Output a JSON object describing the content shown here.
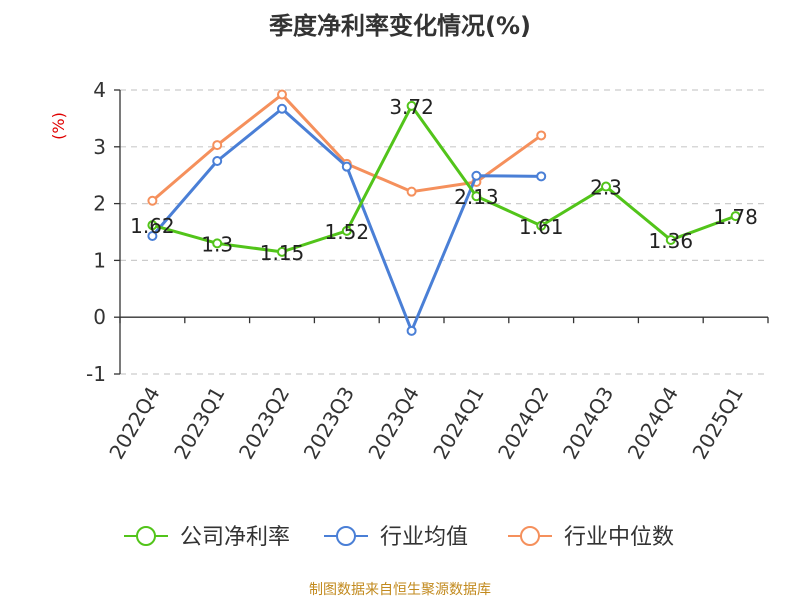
{
  "title": "季度净利率变化情况(%)",
  "unit_label": "(%)",
  "source": "制图数据来自恒生聚源数据库",
  "chart_data": {
    "type": "line",
    "title": "季度净利率变化情况(%)",
    "ylabel": "(%)",
    "xlabel": "",
    "categories": [
      "2022Q4",
      "2023Q1",
      "2023Q2",
      "2023Q3",
      "2023Q4",
      "2024Q1",
      "2024Q2",
      "2024Q3",
      "2024Q4",
      "2025Q1"
    ],
    "ylim": [
      -1,
      4
    ],
    "yticks": [
      -1,
      0,
      1,
      2,
      3,
      4
    ],
    "grid": true,
    "legend_position": "bottom",
    "series": [
      {
        "name": "公司净利率",
        "color": "#52c41a",
        "values": [
          1.62,
          1.3,
          1.15,
          1.52,
          3.72,
          2.13,
          1.61,
          2.3,
          1.36,
          1.78
        ],
        "labels": [
          "1.62",
          "1.3",
          "1.15",
          "1.52",
          "3.72",
          "2.13",
          "1.61",
          "2.3",
          "1.36",
          "1.78"
        ]
      },
      {
        "name": "行业均值",
        "color": "#4a7fd6",
        "values": [
          1.43,
          2.75,
          3.67,
          2.65,
          -0.24,
          2.49,
          2.48,
          null,
          null,
          null
        ]
      },
      {
        "name": "行业中位数",
        "color": "#f5905c",
        "values": [
          2.05,
          3.03,
          3.92,
          2.7,
          2.21,
          2.38,
          3.2,
          null,
          null,
          null
        ]
      }
    ]
  }
}
